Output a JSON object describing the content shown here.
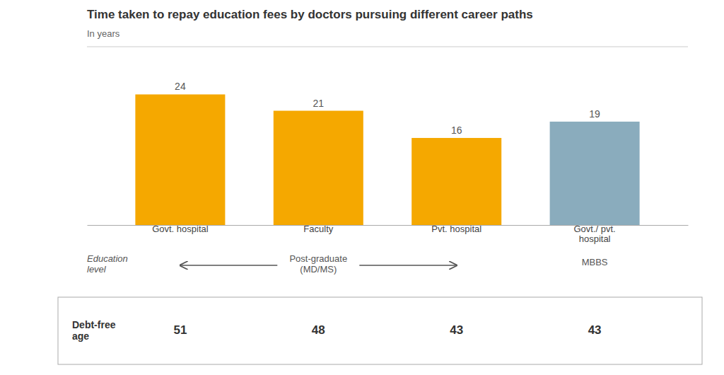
{
  "chart_data": {
    "type": "bar",
    "title": "Time taken to repay education fees by doctors pursuing different career paths",
    "subtitle": "In years",
    "categories": [
      "Govt. hospital",
      "Faculty",
      "Pvt. hospital",
      "Govt./ pvt.\nhospital"
    ],
    "values": [
      24,
      21,
      16,
      19
    ],
    "colors": [
      "#F5A800",
      "#F5A800",
      "#F5A800",
      "#8AACBD"
    ],
    "ylim": [
      0,
      29
    ],
    "data_labels": true,
    "tick_labels": "x",
    "education_label": "Education\nlevel",
    "pg_label": "Post-graduate\n(MD/MS)",
    "mbbs_label": "MBBS",
    "debt_free_label": "Debt-free\nage",
    "debt_free_ages": [
      51,
      48,
      43,
      43
    ]
  }
}
